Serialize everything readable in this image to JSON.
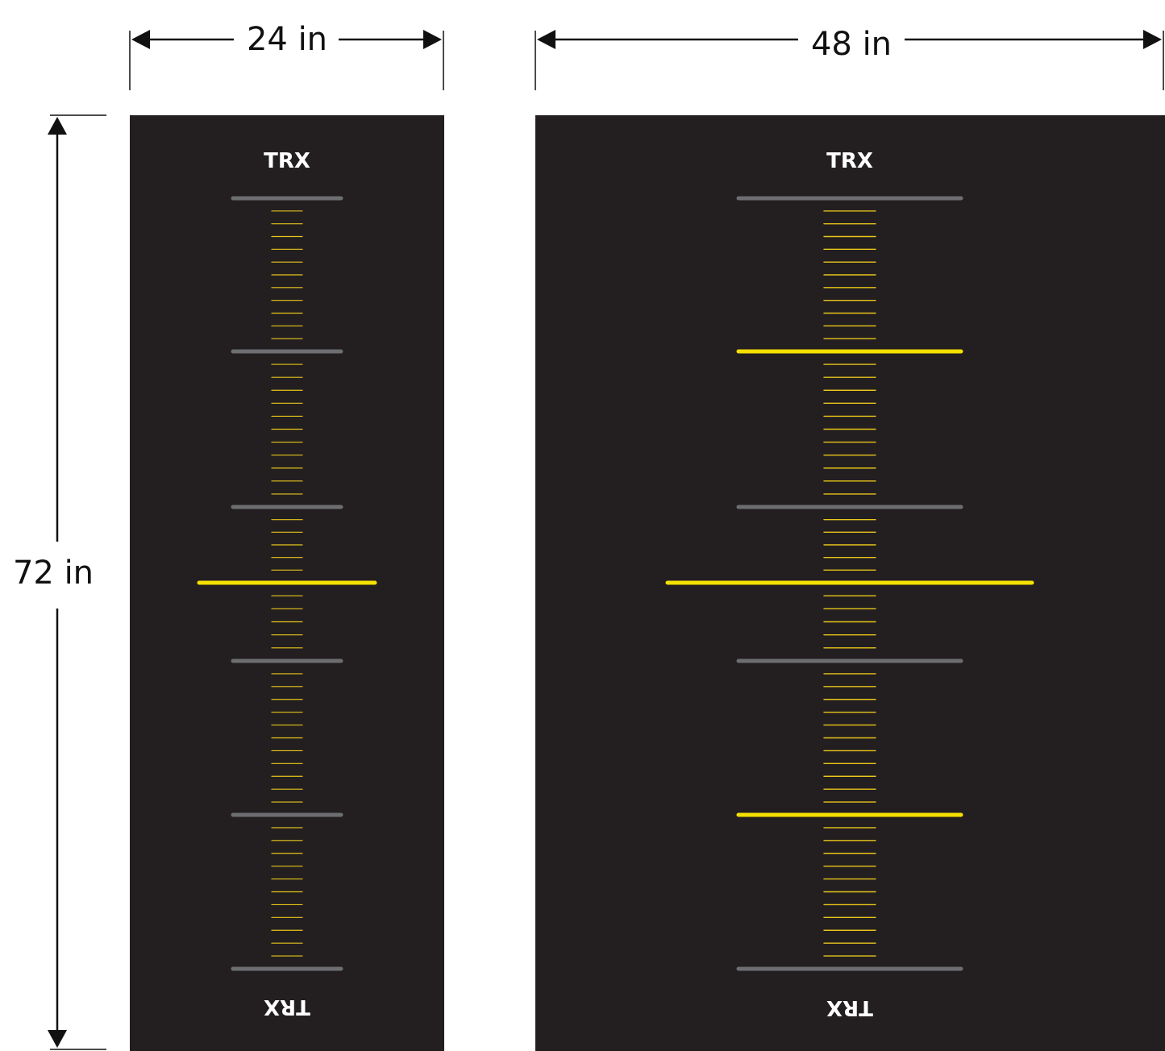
{
  "dimensions": {
    "small_width": "24 in",
    "large_width": "48 in",
    "height": "72 in"
  },
  "mats": [
    {
      "name": "small",
      "logo": "TRX",
      "bars": [
        {
          "color": "gray"
        },
        {
          "color": "gray"
        },
        {
          "color": "gray"
        },
        {
          "color": "yellow",
          "long": true
        },
        {
          "color": "gray"
        },
        {
          "color": "gray"
        },
        {
          "color": "gray"
        }
      ]
    },
    {
      "name": "large",
      "logo": "TRX",
      "bars": [
        {
          "color": "gray"
        },
        {
          "color": "yellow"
        },
        {
          "color": "gray"
        },
        {
          "color": "yellow",
          "long": true
        },
        {
          "color": "gray"
        },
        {
          "color": "yellow"
        },
        {
          "color": "gray"
        }
      ]
    }
  ],
  "colors": {
    "mat": "#231f20",
    "gray_bar": "#6d6e71",
    "yellow_bar": "#f5e000",
    "tick": "#e8c51a",
    "logo": "#ffffff",
    "logo_accent": "#f5e000",
    "dimension_line": "#111111"
  }
}
